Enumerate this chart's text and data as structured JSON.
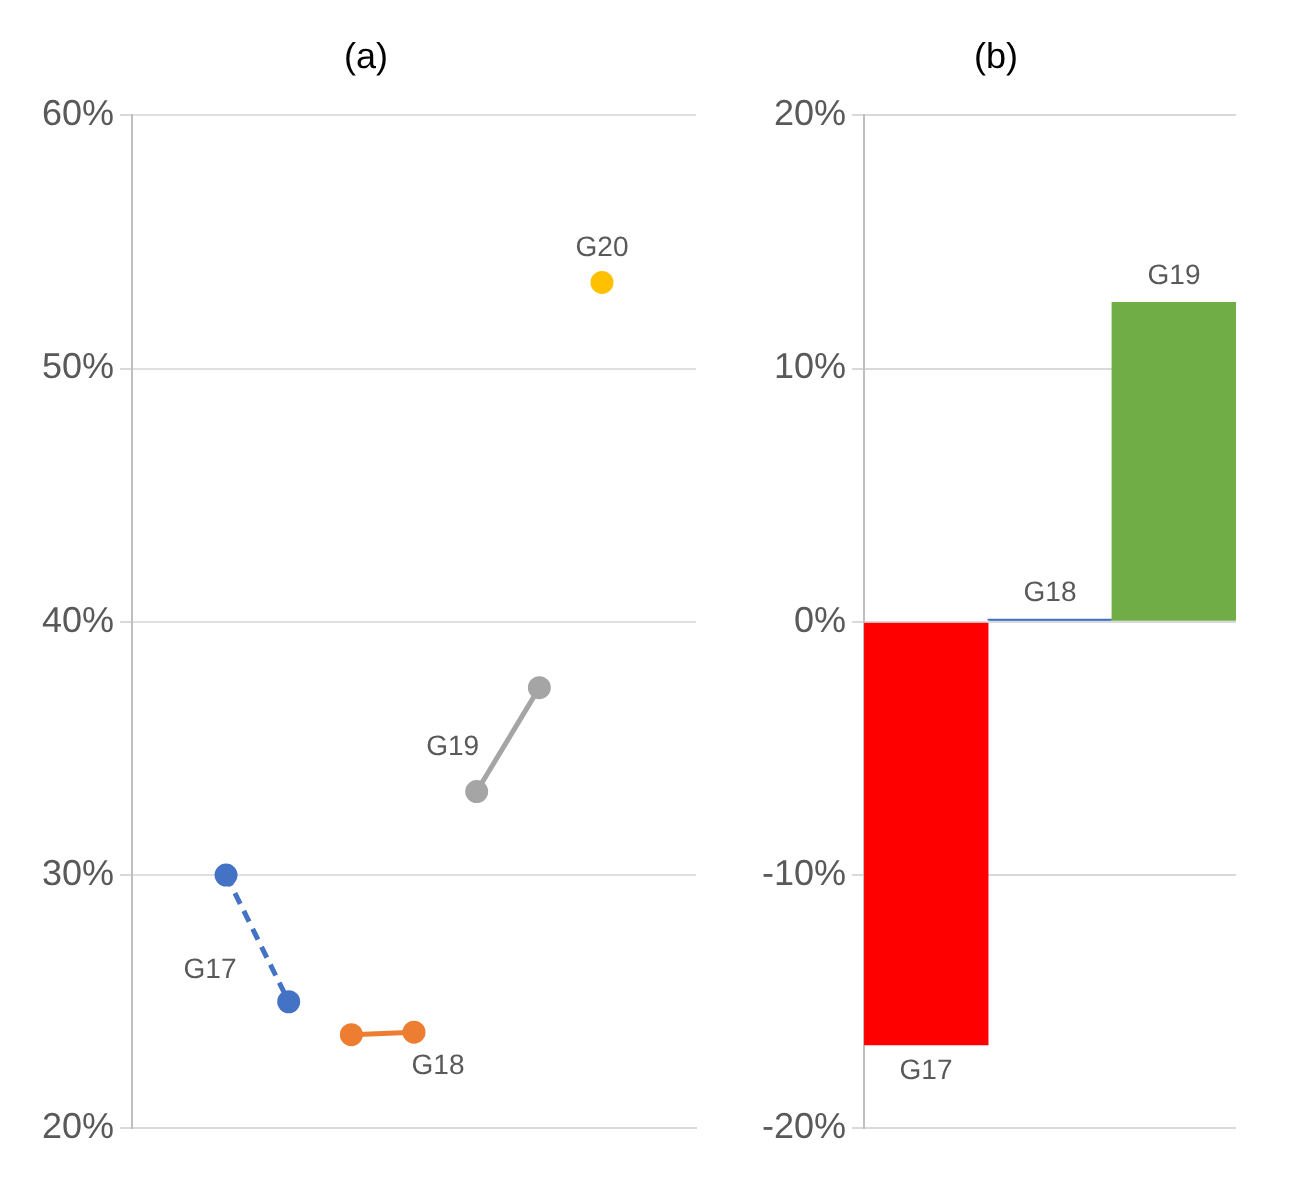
{
  "chart_data": [
    {
      "type": "line",
      "title": "(a)",
      "categories": [
        null,
        null,
        null,
        null,
        null,
        null,
        null,
        null,
        null
      ],
      "ylim": [
        20,
        60
      ],
      "yticks": [
        {
          "value": 20,
          "label": "20%"
        },
        {
          "value": 30,
          "label": "30%"
        },
        {
          "value": 40,
          "label": "40%"
        },
        {
          "value": 50,
          "label": "50%"
        },
        {
          "value": 60,
          "label": "60%"
        }
      ],
      "grid": "y",
      "marker": "circle",
      "tick_labels": "y",
      "legend": false,
      "series": [
        {
          "name": "G17",
          "color": "#4472c4",
          "line_style": "dashed",
          "values": [
            null,
            30.0,
            25.0,
            null,
            null,
            null,
            null,
            null,
            null
          ]
        },
        {
          "name": "G18",
          "color": "#ed7d31",
          "line_style": "solid",
          "values": [
            null,
            null,
            null,
            23.7,
            23.8,
            null,
            null,
            null,
            null
          ]
        },
        {
          "name": "G19",
          "color": "#a5a5a5",
          "line_style": "solid",
          "values": [
            null,
            null,
            null,
            null,
            null,
            33.3,
            37.4,
            null,
            null
          ]
        },
        {
          "name": "G20",
          "color": "#ffc000",
          "line_style": "solid",
          "values": [
            null,
            null,
            null,
            null,
            null,
            null,
            null,
            53.4,
            null
          ]
        }
      ]
    },
    {
      "type": "bar",
      "title": "(b)",
      "categories": [
        "G17",
        "G18",
        "G19"
      ],
      "values": [
        -16.7,
        0.1,
        12.6
      ],
      "colors": [
        "#ff0000",
        "#4472c4",
        "#70ad47"
      ],
      "ylim": [
        -20,
        20
      ],
      "yticks": [
        {
          "value": -20,
          "label": "-20%"
        },
        {
          "value": -10,
          "label": "-10%"
        },
        {
          "value": 0,
          "label": "0%"
        },
        {
          "value": 10,
          "label": "10%"
        },
        {
          "value": 20,
          "label": "20%"
        }
      ],
      "grid": "y",
      "tick_labels": "y",
      "legend": false
    }
  ]
}
